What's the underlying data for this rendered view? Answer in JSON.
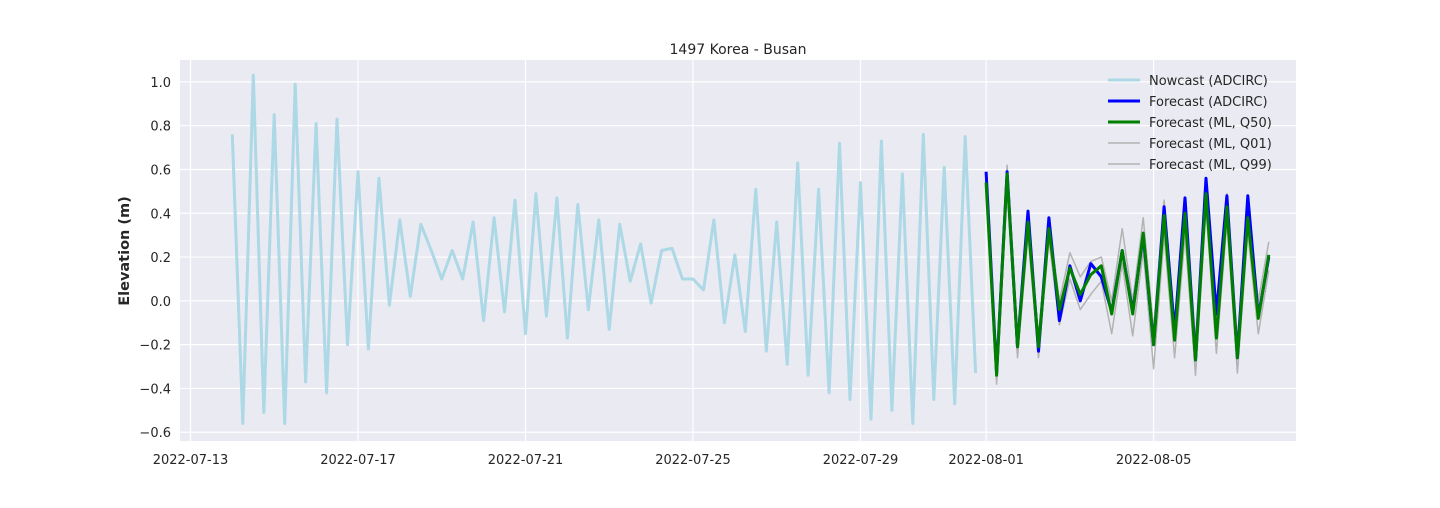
{
  "chart_data": {
    "type": "line",
    "title": "1497 Korea - Busan",
    "xlabel": "",
    "ylabel": "Elevation (m)",
    "x_unit": "days since 2022-07-13",
    "xlim": [
      -0.25,
      26.4
    ],
    "ylim": [
      -0.64,
      1.1
    ],
    "y_ticks": [
      -0.6,
      -0.4,
      -0.2,
      0.0,
      0.2,
      0.4,
      0.6,
      0.8,
      1.0
    ],
    "y_tick_labels": [
      "−0.6",
      "−0.4",
      "−0.2",
      "0.0",
      "0.2",
      "0.4",
      "0.6",
      "0.8",
      "1.0"
    ],
    "x_ticks": [
      0,
      4,
      8,
      12,
      16,
      19,
      23
    ],
    "x_tick_labels": [
      "2022-07-13",
      "2022-07-17",
      "2022-07-21",
      "2022-07-25",
      "2022-07-29",
      "2022-08-01",
      "2022-08-05"
    ],
    "grid": true,
    "legend_position": "top-right",
    "series": [
      {
        "name": "Nowcast (ADCIRC)",
        "color": "#add8e6",
        "width": 3,
        "x_start": 1.0,
        "x_step": 0.25,
        "values": [
          0.76,
          -0.56,
          1.03,
          -0.51,
          0.85,
          -0.56,
          0.99,
          -0.37,
          0.81,
          -0.42,
          0.83,
          -0.2,
          0.59,
          -0.22,
          0.56,
          -0.02,
          0.37,
          0.02,
          0.35,
          0.23,
          0.1,
          0.23,
          0.1,
          0.36,
          -0.09,
          0.38,
          -0.05,
          0.46,
          -0.15,
          0.49,
          -0.07,
          0.47,
          -0.17,
          0.44,
          -0.04,
          0.37,
          -0.13,
          0.35,
          0.09,
          0.26,
          -0.01,
          0.23,
          0.24,
          0.1,
          0.1,
          0.05,
          0.37,
          -0.1,
          0.21,
          -0.14,
          0.51,
          -0.23,
          0.36,
          -0.29,
          0.63,
          -0.34,
          0.51,
          -0.42,
          0.72,
          -0.45,
          0.54,
          -0.54,
          0.73,
          -0.5,
          0.58,
          -0.56,
          0.76,
          -0.45,
          0.61,
          -0.47,
          0.75,
          -0.33
        ]
      },
      {
        "name": "Forecast (ADCIRC)",
        "color": "#0000ff",
        "width": 3,
        "x_start": 19.0,
        "x_step": 0.25,
        "values": [
          0.59,
          -0.33,
          0.59,
          -0.21,
          0.41,
          -0.23,
          0.38,
          -0.09,
          0.16,
          0.0,
          0.17,
          0.11,
          -0.05,
          0.23,
          -0.05,
          0.3,
          -0.2,
          0.43,
          -0.14,
          0.47,
          -0.27,
          0.56,
          -0.06,
          0.48,
          -0.26,
          0.48,
          -0.07,
          0.2
        ]
      },
      {
        "name": "Forecast (ML, Q50)",
        "color": "#008000",
        "width": 3,
        "x_start": 19.0,
        "x_step": 0.25,
        "values": [
          0.54,
          -0.34,
          0.58,
          -0.21,
          0.36,
          -0.21,
          0.33,
          -0.04,
          0.15,
          0.03,
          0.12,
          0.16,
          -0.06,
          0.23,
          -0.06,
          0.31,
          -0.2,
          0.39,
          -0.18,
          0.4,
          -0.27,
          0.49,
          -0.17,
          0.43,
          -0.26,
          0.38,
          -0.08,
          0.21
        ]
      },
      {
        "name": "Forecast (ML, Q01)",
        "color": "#b3b3b3",
        "width": 1.5,
        "x_start": 19.0,
        "x_step": 0.25,
        "values": [
          0.5,
          -0.38,
          0.5,
          -0.26,
          0.3,
          -0.26,
          0.28,
          -0.11,
          0.1,
          -0.04,
          0.03,
          0.09,
          -0.15,
          0.17,
          -0.16,
          0.23,
          -0.31,
          0.3,
          -0.26,
          0.3,
          -0.34,
          0.42,
          -0.24,
          0.36,
          -0.33,
          0.31,
          -0.15,
          0.14
        ]
      },
      {
        "name": "Forecast (ML, Q99)",
        "color": "#b3b3b3",
        "width": 1.5,
        "x_start": 19.0,
        "x_step": 0.25,
        "values": [
          0.58,
          -0.3,
          0.62,
          -0.16,
          0.4,
          -0.16,
          0.37,
          0.0,
          0.22,
          0.11,
          0.18,
          0.2,
          0.0,
          0.33,
          0.0,
          0.38,
          -0.13,
          0.46,
          -0.1,
          0.46,
          -0.18,
          0.56,
          -0.09,
          0.49,
          -0.18,
          0.44,
          0.0,
          0.27
        ]
      }
    ]
  }
}
